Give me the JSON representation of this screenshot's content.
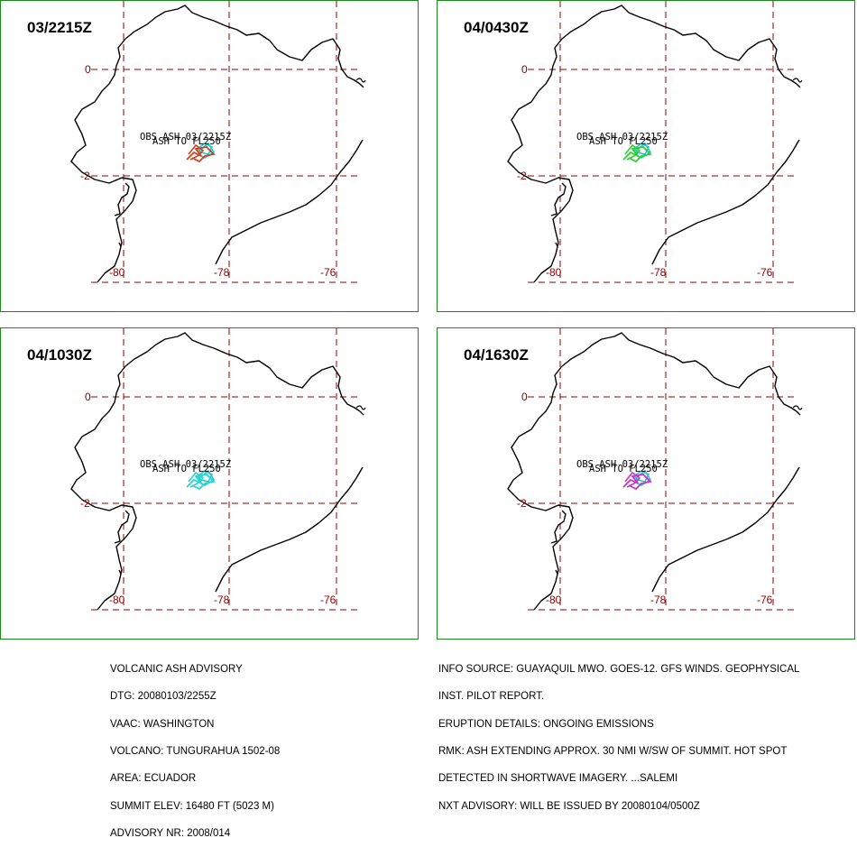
{
  "panels": [
    {
      "time": "03/2215Z",
      "ash_color": "#cc4422",
      "ash_color2": "#20c8c8"
    },
    {
      "time": "04/0430Z",
      "ash_color": "#33cc33",
      "ash_color2": "#20c8c8"
    },
    {
      "time": "04/1030Z",
      "ash_color": "#22d8d8",
      "ash_color2": "#20c8c8"
    },
    {
      "time": "04/1630Z",
      "ash_color": "#cc33cc",
      "ash_color2": "#20c8c8"
    }
  ],
  "map": {
    "lat_labels": [
      "0",
      "-2"
    ],
    "lon_labels": [
      "-80",
      "-78",
      "-76"
    ],
    "obs_label": "OBS ASH 03/2215Z",
    "ash_label": "ASH TO FL250",
    "coast_colors": {
      "grid": "#8b0000",
      "coast": "#000000",
      "border": "#1a8a1a"
    }
  },
  "advisory_left": [
    "VOLCANIC ASH ADVISORY",
    "DTG: 20080103/2255Z",
    "VAAC: WASHINGTON",
    "VOLCANO: TUNGURAHUA 1502-08",
    "AREA: ECUADOR",
    "SUMMIT ELEV: 16480 FT (5023 M)",
    "ADVISORY NR: 2008/014"
  ],
  "advisory_right": [
    "INFO SOURCE: GUAYAQUIL MWO. GOES-12. GFS WINDS. GEOPHYSICAL",
    "INST. PILOT REPORT.",
    "ERUPTION DETAILS: ONGOING EMISSIONS",
    "RMK: ASH EXTENDING APPROX. 30 NMI W/SW OF SUMMIT. HOT SPOT",
    "DETECTED IN SHORTWAVE IMAGERY. ...SALEMI",
    "NXT ADVISORY: WILL BE ISSUED BY 20080104/0500Z"
  ]
}
